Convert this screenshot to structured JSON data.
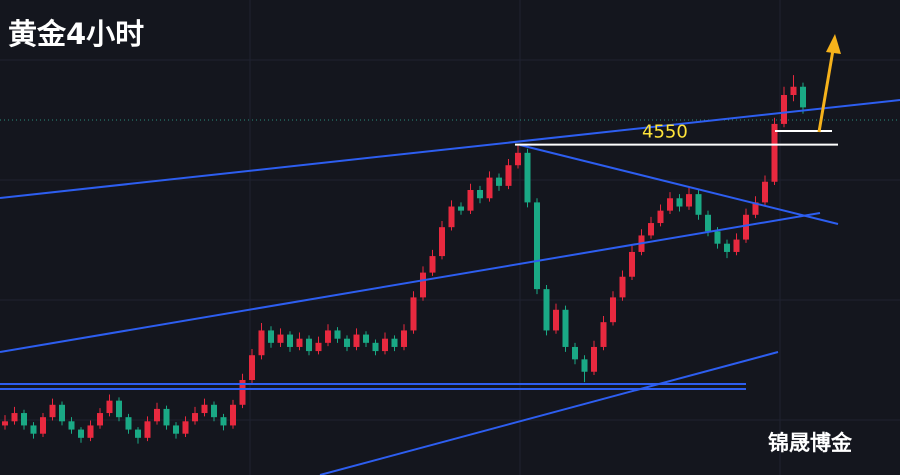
{
  "chart_data": {
    "type": "candlestick",
    "title": "黄金4小时",
    "watermark": "锦晟博金",
    "level": 4550,
    "level_color": "#ffffff",
    "label_color": "#ffe43a",
    "up_color": "#e8293f",
    "down_color": "#1aa985",
    "ylim": [
      3750,
      4900
    ],
    "candles": [
      [
        3870,
        3895,
        3860,
        3880
      ],
      [
        3880,
        3915,
        3872,
        3900
      ],
      [
        3900,
        3908,
        3860,
        3870
      ],
      [
        3870,
        3878,
        3838,
        3850
      ],
      [
        3850,
        3900,
        3842,
        3890
      ],
      [
        3890,
        3935,
        3882,
        3920
      ],
      [
        3920,
        3928,
        3870,
        3880
      ],
      [
        3880,
        3890,
        3850,
        3860
      ],
      [
        3860,
        3866,
        3828,
        3840
      ],
      [
        3840,
        3882,
        3832,
        3870
      ],
      [
        3870,
        3912,
        3862,
        3900
      ],
      [
        3900,
        3945,
        3892,
        3930
      ],
      [
        3930,
        3938,
        3880,
        3890
      ],
      [
        3890,
        3898,
        3850,
        3860
      ],
      [
        3860,
        3866,
        3826,
        3840
      ],
      [
        3840,
        3892,
        3832,
        3880
      ],
      [
        3880,
        3925,
        3872,
        3910
      ],
      [
        3910,
        3918,
        3860,
        3870
      ],
      [
        3870,
        3878,
        3838,
        3850
      ],
      [
        3850,
        3892,
        3842,
        3880
      ],
      [
        3880,
        3915,
        3872,
        3900
      ],
      [
        3900,
        3935,
        3892,
        3920
      ],
      [
        3920,
        3928,
        3880,
        3890
      ],
      [
        3890,
        3898,
        3858,
        3870
      ],
      [
        3870,
        3932,
        3862,
        3920
      ],
      [
        3920,
        3995,
        3912,
        3980
      ],
      [
        3980,
        4055,
        3970,
        4040
      ],
      [
        4040,
        4118,
        4030,
        4100
      ],
      [
        4100,
        4110,
        4058,
        4070
      ],
      [
        4070,
        4105,
        4060,
        4090
      ],
      [
        4090,
        4098,
        4048,
        4060
      ],
      [
        4060,
        4095,
        4052,
        4080
      ],
      [
        4080,
        4088,
        4040,
        4050
      ],
      [
        4050,
        4085,
        4042,
        4070
      ],
      [
        4070,
        4115,
        4062,
        4100
      ],
      [
        4100,
        4108,
        4070,
        4080
      ],
      [
        4080,
        4088,
        4050,
        4060
      ],
      [
        4060,
        4105,
        4052,
        4090
      ],
      [
        4090,
        4098,
        4060,
        4070
      ],
      [
        4070,
        4078,
        4040,
        4050
      ],
      [
        4050,
        4095,
        4042,
        4080
      ],
      [
        4080,
        4088,
        4050,
        4060
      ],
      [
        4060,
        4115,
        4052,
        4100
      ],
      [
        4100,
        4195,
        4092,
        4180
      ],
      [
        4180,
        4255,
        4172,
        4240
      ],
      [
        4240,
        4295,
        4232,
        4280
      ],
      [
        4280,
        4365,
        4272,
        4350
      ],
      [
        4350,
        4415,
        4342,
        4400
      ],
      [
        4400,
        4410,
        4380,
        4390
      ],
      [
        4390,
        4455,
        4382,
        4440
      ],
      [
        4440,
        4450,
        4408,
        4420
      ],
      [
        4420,
        4485,
        4412,
        4470
      ],
      [
        4470,
        4480,
        4438,
        4450
      ],
      [
        4450,
        4515,
        4442,
        4500
      ],
      [
        4500,
        4550,
        4492,
        4530
      ],
      [
        4530,
        4540,
        4398,
        4410
      ],
      [
        4410,
        4420,
        4188,
        4200
      ],
      [
        4200,
        4210,
        4088,
        4100
      ],
      [
        4100,
        4165,
        4092,
        4150
      ],
      [
        4150,
        4160,
        4048,
        4060
      ],
      [
        4060,
        4070,
        4018,
        4030
      ],
      [
        4030,
        4040,
        3975,
        4000
      ],
      [
        4000,
        4075,
        3992,
        4060
      ],
      [
        4060,
        4135,
        4052,
        4120
      ],
      [
        4120,
        4195,
        4112,
        4180
      ],
      [
        4180,
        4245,
        4172,
        4230
      ],
      [
        4230,
        4305,
        4222,
        4290
      ],
      [
        4290,
        4345,
        4282,
        4330
      ],
      [
        4330,
        4375,
        4322,
        4360
      ],
      [
        4360,
        4405,
        4352,
        4390
      ],
      [
        4390,
        4435,
        4382,
        4420
      ],
      [
        4420,
        4430,
        4388,
        4400
      ],
      [
        4400,
        4445,
        4392,
        4430
      ],
      [
        4430,
        4440,
        4368,
        4380
      ],
      [
        4380,
        4390,
        4328,
        4340
      ],
      [
        4340,
        4350,
        4298,
        4310
      ],
      [
        4310,
        4320,
        4275,
        4290
      ],
      [
        4290,
        4335,
        4282,
        4320
      ],
      [
        4320,
        4395,
        4312,
        4380
      ],
      [
        4380,
        4425,
        4372,
        4410
      ],
      [
        4410,
        4475,
        4402,
        4460
      ],
      [
        4460,
        4615,
        4452,
        4600
      ],
      [
        4600,
        4690,
        4592,
        4670
      ],
      [
        4670,
        4718,
        4655,
        4690
      ],
      [
        4690,
        4700,
        4625,
        4640
      ]
    ]
  }
}
